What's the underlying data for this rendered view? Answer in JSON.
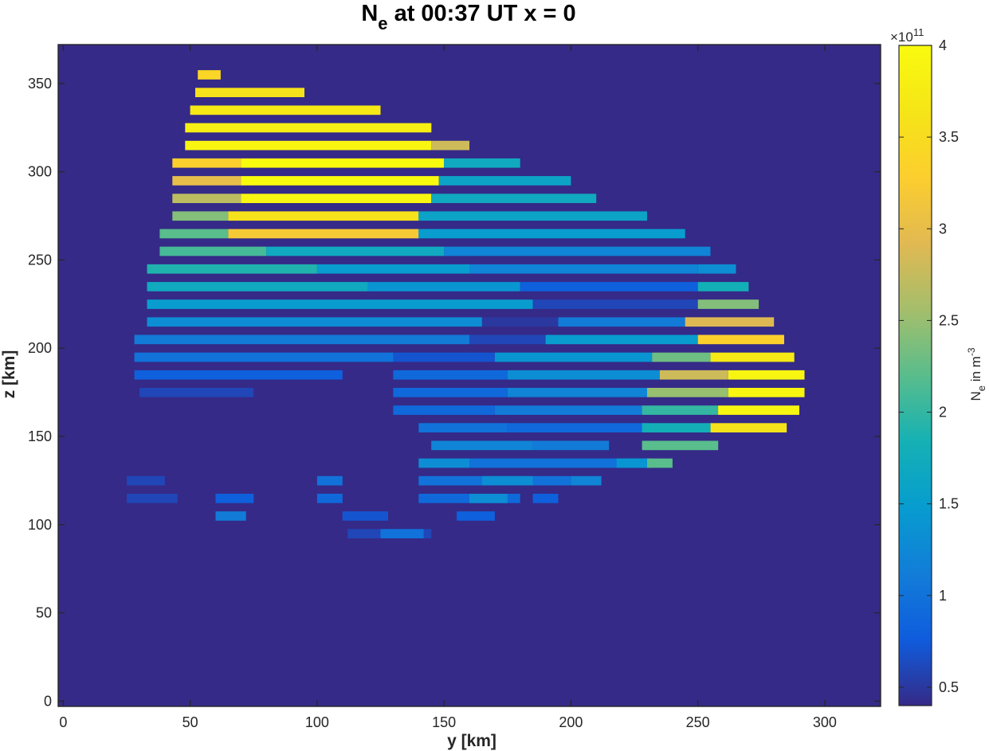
{
  "chart_data": {
    "type": "heatmap",
    "title": {
      "prefix": "N",
      "subscript": "e",
      "suffix": " at 00:37 UT x = 0"
    },
    "xlabel": "y [km]",
    "ylabel": "z [km]",
    "xlim": [
      -2,
      322
    ],
    "ylim": [
      -3,
      372
    ],
    "x_ticks": [
      "0",
      "50",
      "100",
      "150",
      "200",
      "250",
      "300"
    ],
    "y_ticks": [
      "0",
      "50",
      "100",
      "150",
      "200",
      "250",
      "300",
      "350"
    ],
    "grid": false,
    "colorbar": {
      "label_main": "N",
      "label_sub": "e",
      "label_mid": " in m",
      "label_sup": "-3",
      "multiplier_base": "×10",
      "multiplier_exp": "11",
      "range": [
        0.4,
        4.0
      ],
      "ticks": [
        "0.5",
        "1",
        "1.5",
        "2",
        "2.5",
        "3",
        "3.5",
        "4"
      ],
      "colormap": "parula"
    },
    "background_value": 0.4,
    "units": "×10^11 m^-3",
    "cell_size_km": [
      5,
      5
    ],
    "region_rows": [
      {
        "z": 95,
        "segments": [
          [
            112,
            145,
            0.6
          ],
          [
            125,
            142,
            1.0
          ]
        ]
      },
      {
        "z": 105,
        "segments": [
          [
            60,
            72,
            1.1
          ],
          [
            110,
            128,
            0.7
          ],
          [
            155,
            170,
            0.8
          ]
        ]
      },
      {
        "z": 115,
        "segments": [
          [
            25,
            45,
            0.6
          ],
          [
            60,
            75,
            0.8
          ],
          [
            100,
            110,
            0.9
          ],
          [
            140,
            180,
            0.9
          ],
          [
            160,
            175,
            1.3
          ],
          [
            185,
            195,
            0.8
          ]
        ]
      },
      {
        "z": 125,
        "segments": [
          [
            25,
            40,
            0.6
          ],
          [
            100,
            110,
            1.0
          ],
          [
            140,
            200,
            1.0
          ],
          [
            165,
            185,
            1.3
          ],
          [
            200,
            212,
            1.2
          ]
        ]
      },
      {
        "z": 135,
        "segments": [
          [
            140,
            160,
            1.3
          ],
          [
            160,
            230,
            1.0
          ],
          [
            218,
            232,
            1.4
          ],
          [
            230,
            240,
            2.2
          ]
        ]
      },
      {
        "z": 145,
        "segments": [
          [
            145,
            185,
            1.2
          ],
          [
            185,
            215,
            1.1
          ],
          [
            228,
            258,
            2.2
          ]
        ]
      },
      {
        "z": 155,
        "segments": [
          [
            140,
            175,
            1.0
          ],
          [
            175,
            230,
            0.9
          ],
          [
            228,
            255,
            1.8
          ],
          [
            255,
            285,
            3.6
          ]
        ]
      },
      {
        "z": 165,
        "segments": [
          [
            130,
            170,
            0.9
          ],
          [
            170,
            228,
            1.1
          ],
          [
            228,
            258,
            2.0
          ],
          [
            258,
            290,
            3.9
          ]
        ]
      },
      {
        "z": 175,
        "segments": [
          [
            30,
            75,
            0.6
          ],
          [
            130,
            175,
            0.9
          ],
          [
            175,
            230,
            1.2
          ],
          [
            230,
            262,
            2.5
          ],
          [
            262,
            292,
            3.9
          ]
        ]
      },
      {
        "z": 185,
        "segments": [
          [
            28,
            110,
            0.8
          ],
          [
            130,
            175,
            0.9
          ],
          [
            175,
            235,
            1.3
          ],
          [
            235,
            262,
            2.8
          ],
          [
            262,
            292,
            3.9
          ]
        ]
      },
      {
        "z": 195,
        "segments": [
          [
            28,
            130,
            1.0
          ],
          [
            130,
            170,
            0.7
          ],
          [
            170,
            232,
            1.4
          ],
          [
            232,
            255,
            2.3
          ],
          [
            255,
            288,
            3.7
          ]
        ]
      },
      {
        "z": 205,
        "segments": [
          [
            28,
            160,
            1.1
          ],
          [
            160,
            190,
            0.6
          ],
          [
            190,
            250,
            1.5
          ],
          [
            250,
            284,
            3.3
          ]
        ]
      },
      {
        "z": 215,
        "segments": [
          [
            33,
            165,
            1.3
          ],
          [
            165,
            195,
            0.5
          ],
          [
            195,
            245,
            1.1
          ],
          [
            245,
            280,
            2.9
          ]
        ]
      },
      {
        "z": 225,
        "segments": [
          [
            33,
            185,
            1.5
          ],
          [
            185,
            250,
            0.6
          ],
          [
            250,
            274,
            2.4
          ]
        ]
      },
      {
        "z": 235,
        "segments": [
          [
            33,
            120,
            1.7
          ],
          [
            120,
            180,
            1.4
          ],
          [
            180,
            250,
            0.8
          ],
          [
            250,
            270,
            1.8
          ]
        ]
      },
      {
        "z": 245,
        "segments": [
          [
            33,
            100,
            1.9
          ],
          [
            100,
            160,
            1.5
          ],
          [
            160,
            250,
            1.2
          ],
          [
            250,
            265,
            1.3
          ]
        ]
      },
      {
        "z": 255,
        "segments": [
          [
            38,
            80,
            2.1
          ],
          [
            80,
            150,
            1.7
          ],
          [
            150,
            255,
            1.2
          ]
        ]
      },
      {
        "z": 265,
        "segments": [
          [
            38,
            65,
            2.2
          ],
          [
            65,
            140,
            3.2
          ],
          [
            140,
            245,
            1.5
          ]
        ]
      },
      {
        "z": 275,
        "segments": [
          [
            43,
            65,
            2.4
          ],
          [
            65,
            140,
            3.6
          ],
          [
            140,
            230,
            1.6
          ]
        ]
      },
      {
        "z": 285,
        "segments": [
          [
            43,
            70,
            2.7
          ],
          [
            70,
            145,
            3.9
          ],
          [
            145,
            210,
            1.7
          ]
        ]
      },
      {
        "z": 295,
        "segments": [
          [
            43,
            70,
            3.0
          ],
          [
            70,
            148,
            4.0
          ],
          [
            148,
            200,
            1.6
          ]
        ]
      },
      {
        "z": 305,
        "segments": [
          [
            43,
            70,
            3.3
          ],
          [
            70,
            150,
            4.0
          ],
          [
            150,
            180,
            1.7
          ]
        ]
      },
      {
        "z": 315,
        "segments": [
          [
            48,
            145,
            3.9
          ],
          [
            145,
            160,
            2.8
          ]
        ]
      },
      {
        "z": 325,
        "segments": [
          [
            48,
            145,
            3.8
          ]
        ]
      },
      {
        "z": 335,
        "segments": [
          [
            50,
            125,
            3.7
          ]
        ]
      },
      {
        "z": 345,
        "segments": [
          [
            52,
            95,
            3.6
          ]
        ]
      },
      {
        "z": 355,
        "segments": [
          [
            53,
            62,
            3.4
          ]
        ]
      }
    ]
  }
}
